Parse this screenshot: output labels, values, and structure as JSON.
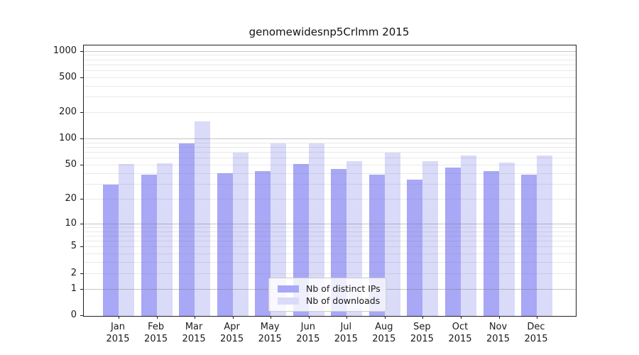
{
  "figure": {
    "title": "genomewidesnp5Crlmm 2015"
  },
  "chart_data": {
    "type": "bar",
    "title": "genomewidesnp5Crlmm 2015",
    "x_year": "2015",
    "categories": [
      "Jan",
      "Feb",
      "Mar",
      "Apr",
      "May",
      "Jun",
      "Jul",
      "Aug",
      "Sep",
      "Oct",
      "Nov",
      "Dec"
    ],
    "series": [
      {
        "name": "Nb of distinct IPs",
        "color": "#a8a8f6",
        "values": [
          30,
          39,
          90,
          41,
          43,
          52,
          46,
          39,
          34,
          47,
          43,
          39
        ]
      },
      {
        "name": "Nb of downloads",
        "color": "#dadaf9",
        "values": [
          52,
          53,
          160,
          71,
          90,
          90,
          56,
          70,
          56,
          65,
          54,
          65
        ]
      }
    ],
    "y_scale": "log10(1+value)",
    "y_ticks": [
      0,
      1,
      2,
      5,
      10,
      20,
      50,
      100,
      200,
      500,
      1000
    ],
    "ylim": [
      0,
      1175
    ],
    "grid": true,
    "grid_major_at": [
      1,
      10,
      100,
      1000
    ],
    "legend": {
      "position": "inside-bottom-center",
      "entries": [
        "Nb of distinct IPs",
        "Nb of downloads"
      ]
    }
  },
  "colors": {
    "background": "#ffffff",
    "bar_distinct_ips": "#a8a8f6",
    "bar_downloads": "#dadaf9",
    "grid_major": "rgba(120,120,120,0.42)",
    "grid_minor": "rgba(120,120,120,0.16)",
    "axis": "#222222"
  }
}
